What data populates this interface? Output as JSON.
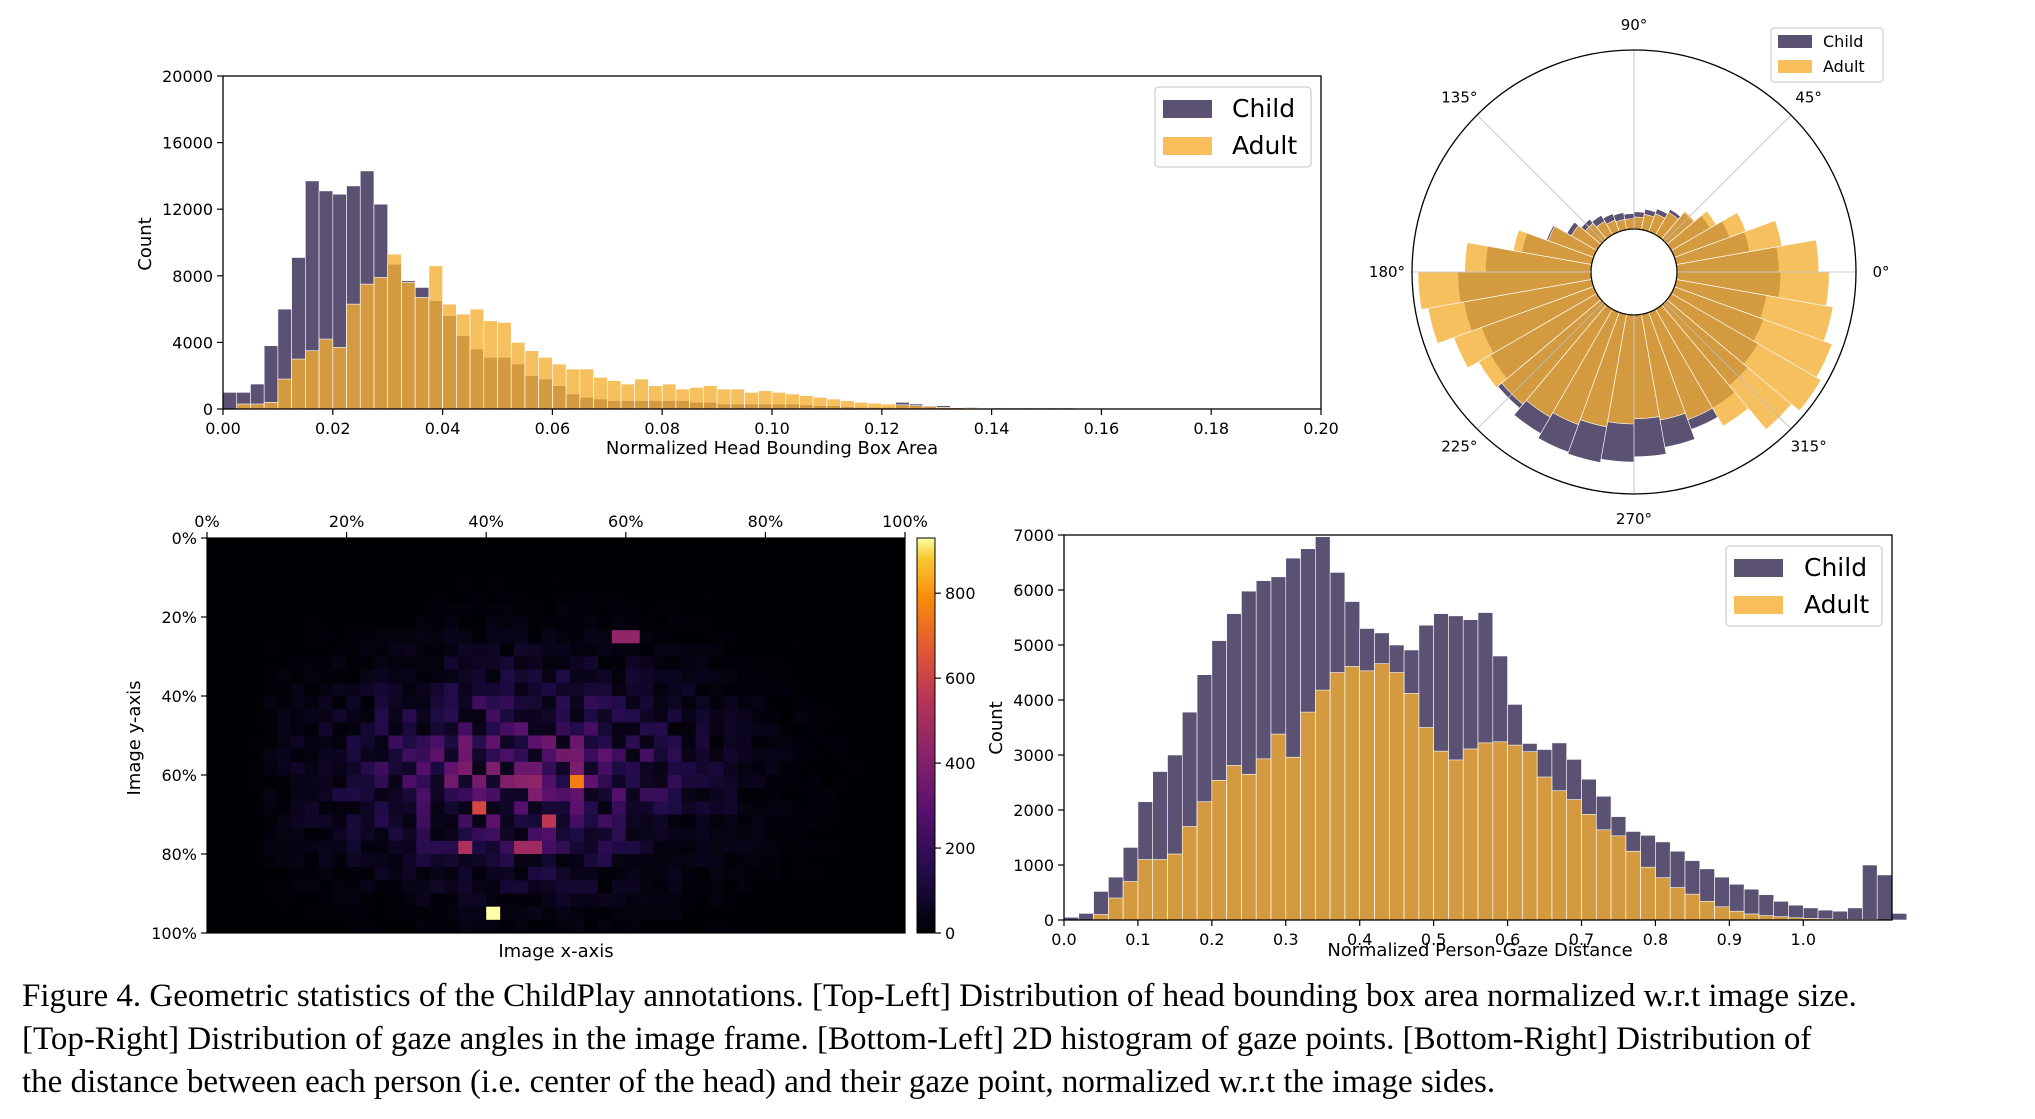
{
  "colors": {
    "child": "#5b5273",
    "adult": "#f5ae32",
    "overlap": "#c98c2e",
    "edge": "#ffffff"
  },
  "charts": {
    "bbox": {
      "type": "bar",
      "title": "",
      "xlabel": "Normalized Head Bounding Box Area",
      "ylabel": "Count",
      "xticks": [
        "0.00",
        "0.02",
        "0.04",
        "0.06",
        "0.08",
        "0.10",
        "0.12",
        "0.14",
        "0.16",
        "0.18",
        "0.20"
      ],
      "yticks": [
        "0",
        "4000",
        "8000",
        "12000",
        "16000",
        "20000"
      ],
      "legend": [
        "Child",
        "Adult"
      ]
    },
    "polar": {
      "type": "bar",
      "angle_labels": [
        "0°",
        "45°",
        "90°",
        "135°",
        "180°",
        "225°",
        "270°",
        "315°"
      ],
      "legend": [
        "Child",
        "Adult"
      ]
    },
    "heatmap": {
      "type": "heatmap",
      "xlabel": "Image x-axis",
      "ylabel": "Image y-axis",
      "xticks": [
        "0%",
        "20%",
        "40%",
        "60%",
        "80%",
        "100%"
      ],
      "yticks": [
        "0%",
        "20%",
        "40%",
        "60%",
        "80%",
        "100%"
      ],
      "colorbar_ticks": [
        "0",
        "200",
        "400",
        "600",
        "800"
      ]
    },
    "dist": {
      "type": "bar",
      "xlabel": "Normalized Person-Gaze Distance",
      "ylabel": "Count",
      "xticks": [
        "0.0",
        "0.1",
        "0.2",
        "0.3",
        "0.4",
        "0.5",
        "0.6",
        "0.7",
        "0.8",
        "0.9",
        "1.0"
      ],
      "yticks": [
        "0",
        "1000",
        "2000",
        "3000",
        "4000",
        "5000",
        "6000",
        "7000"
      ],
      "legend": [
        "Child",
        "Adult"
      ]
    }
  },
  "chart_data": [
    {
      "type": "bar",
      "xlabel": "Normalized Head Bounding Box Area",
      "ylabel": "Count",
      "xlim": [
        0,
        0.2
      ],
      "ylim": [
        0,
        20000
      ],
      "bin_width": 0.0025,
      "bin_start": 0.0,
      "series": [
        {
          "name": "Child",
          "values": [
            1000,
            1000,
            1500,
            3800,
            6000,
            9100,
            13700,
            13100,
            12900,
            13400,
            14300,
            12300,
            8700,
            7700,
            7300,
            6500,
            5600,
            4400,
            3600,
            3100,
            3100,
            2700,
            2000,
            1800,
            1400,
            900,
            700,
            600,
            500,
            500,
            500,
            500,
            500,
            500,
            400,
            400,
            300,
            300,
            300,
            300,
            300,
            300,
            250,
            200,
            200,
            150,
            100,
            100,
            100,
            400,
            300,
            200,
            200,
            100,
            100,
            80,
            80,
            60,
            60,
            60,
            60,
            60,
            40,
            40,
            40,
            40,
            40,
            40,
            40,
            40,
            40,
            40,
            40,
            40,
            40,
            40,
            40,
            40,
            40,
            40
          ]
        },
        {
          "name": "Adult",
          "values": [
            0,
            300,
            300,
            400,
            1800,
            3000,
            3500,
            4200,
            3700,
            6300,
            7500,
            7900,
            9300,
            7600,
            6700,
            8600,
            6300,
            5700,
            6000,
            5300,
            5200,
            4000,
            3500,
            3100,
            2700,
            2400,
            2400,
            1900,
            1700,
            1500,
            1800,
            1400,
            1500,
            1200,
            1300,
            1400,
            1200,
            1200,
            1000,
            1100,
            1000,
            900,
            800,
            700,
            600,
            500,
            400,
            350,
            300,
            250,
            200,
            150,
            100,
            80,
            60,
            40,
            30,
            20,
            10,
            10,
            10,
            10,
            10,
            10,
            10,
            10,
            10,
            10,
            10,
            10,
            10,
            10,
            0,
            0,
            0,
            0,
            0,
            0,
            0,
            0
          ]
        }
      ]
    },
    {
      "type": "bar",
      "subtype": "polar",
      "angle_unit": "degrees",
      "angle_bins_deg": [
        0,
        10,
        20,
        30,
        40,
        50,
        60,
        70,
        80,
        90,
        100,
        110,
        120,
        130,
        140,
        150,
        160,
        170,
        180,
        190,
        200,
        210,
        220,
        230,
        240,
        250,
        260,
        270,
        280,
        290,
        300,
        310,
        320,
        330,
        340,
        350
      ],
      "series": [
        {
          "name": "Child",
          "values": [
            0.59,
            0.43,
            0.34,
            0.26,
            0.2,
            0.17,
            0.14,
            0.12,
            0.1,
            0.09,
            0.1,
            0.11,
            0.13,
            0.15,
            0.2,
            0.29,
            0.41,
            0.61,
            0.77,
            0.75,
            0.69,
            0.71,
            0.78,
            0.83,
            0.86,
            0.87,
            0.85,
            0.82,
            0.78,
            0.72,
            0.66,
            0.61,
            0.58,
            0.55,
            0.53,
            0.6
          ]
        },
        {
          "name": "Adult",
          "values": [
            0.82,
            0.62,
            0.44,
            0.3,
            0.21,
            0.15,
            0.11,
            0.09,
            0.07,
            0.06,
            0.06,
            0.07,
            0.09,
            0.12,
            0.17,
            0.28,
            0.46,
            0.73,
            1.0,
            0.96,
            0.86,
            0.79,
            0.75,
            0.72,
            0.69,
            0.66,
            0.63,
            0.6,
            0.62,
            0.66,
            0.78,
            0.94,
            1.0,
            0.97,
            0.92,
            0.88
          ]
        }
      ]
    },
    {
      "type": "heatmap",
      "xlabel": "Image x-axis",
      "ylabel": "Image y-axis",
      "x_range": [
        "0%",
        "100%"
      ],
      "y_range": [
        "0%",
        "100%"
      ],
      "bins": [
        50,
        30
      ],
      "colorbar_range": [
        0,
        930
      ],
      "peak_bins": [
        {
          "x": 0.41,
          "y": 0.96,
          "value": 930
        },
        {
          "x": 0.53,
          "y": 0.63,
          "value": 760
        },
        {
          "x": 0.39,
          "y": 0.68,
          "value": 620
        },
        {
          "x": 0.49,
          "y": 0.71,
          "value": 560
        },
        {
          "x": 0.37,
          "y": 0.77,
          "value": 520
        },
        {
          "x": 0.46,
          "y": 0.78,
          "value": 480
        },
        {
          "x": 0.6,
          "y": 0.26,
          "value": 440
        }
      ],
      "density_center": {
        "x": 0.45,
        "y": 0.6
      },
      "density_spread": {
        "x": 0.17,
        "y": 0.17
      }
    },
    {
      "type": "bar",
      "xlabel": "Normalized Person-Gaze Distance",
      "ylabel": "Count",
      "xlim": [
        0,
        1.12
      ],
      "ylim": [
        0,
        7000
      ],
      "bin_width": 0.02,
      "bin_start": 0.0,
      "series": [
        {
          "name": "Child",
          "values": [
            50,
            120,
            520,
            780,
            1320,
            2150,
            2700,
            3000,
            3780,
            4460,
            5080,
            5570,
            5980,
            6170,
            6240,
            6580,
            6750,
            6970,
            6320,
            5790,
            5300,
            5220,
            5000,
            4910,
            5360,
            5570,
            5530,
            5460,
            5590,
            4800,
            3920,
            3210,
            3100,
            3220,
            2920,
            2560,
            2250,
            1880,
            1610,
            1540,
            1420,
            1250,
            1080,
            930,
            780,
            650,
            560,
            460,
            340,
            270,
            220,
            180,
            160,
            220,
            1000,
            820,
            120,
            0
          ]
        },
        {
          "name": "Adult",
          "values": [
            0,
            0,
            100,
            400,
            700,
            1100,
            1100,
            1200,
            1700,
            2150,
            2540,
            2810,
            2650,
            2930,
            3380,
            2960,
            3780,
            4180,
            4500,
            4610,
            4530,
            4660,
            4500,
            4120,
            3500,
            3070,
            2910,
            3110,
            3220,
            3240,
            3180,
            3060,
            2600,
            2350,
            2190,
            1920,
            1640,
            1530,
            1250,
            960,
            770,
            590,
            470,
            340,
            240,
            160,
            110,
            80,
            60,
            40,
            30,
            20,
            10,
            10,
            10,
            0,
            0,
            0
          ]
        }
      ]
    }
  ],
  "caption": {
    "lines": [
      "Figure 4. Geometric statistics of the ChildPlay annotations. [Top-Left] Distribution of head bounding box area normalized w.r.t image size.",
      "[Top-Right] Distribution of gaze angles in the image frame. [Bottom-Left] 2D histogram of gaze points. [Bottom-Right] Distribution of",
      "the distance between each person (i.e. center of the head) and their gaze point, normalized w.r.t the image sides."
    ]
  }
}
